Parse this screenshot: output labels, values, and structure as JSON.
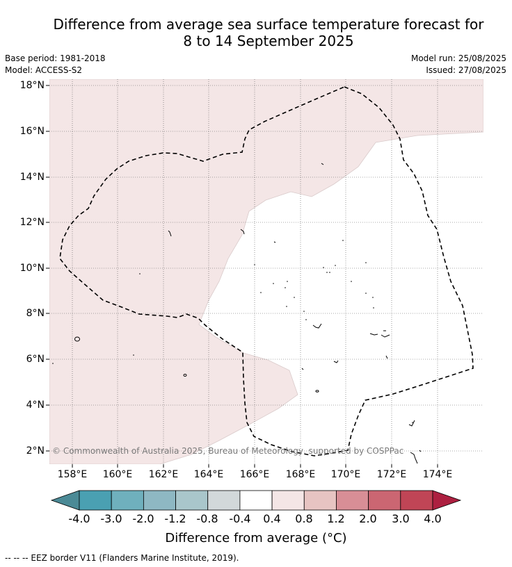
{
  "title": {
    "line1": "Difference from average sea surface temperature forecast for",
    "line2": "8 to 14 September 2025"
  },
  "meta": {
    "base_period": "Base period: 1981-2018",
    "model": "Model: ACCESS-S2",
    "model_run": "Model run: 25/08/2025",
    "issued": "Issued: 27/08/2025"
  },
  "map": {
    "lat_labels": [
      "18°N",
      "16°N",
      "14°N",
      "12°N",
      "10°N",
      "8°N",
      "6°N",
      "4°N",
      "2°N"
    ],
    "lon_labels": [
      "158°E",
      "160°E",
      "162°E",
      "164°E",
      "166°E",
      "168°E",
      "170°E",
      "172°E",
      "174°E"
    ],
    "copyright": "© Commonwealth of Australia 2025, Bureau of Meteorology, supported by COSPPac",
    "anomaly_fill_color": "#f4e6e6",
    "eez_line_color": "#000000",
    "grid_color": "#555555"
  },
  "colorbar": {
    "tick_labels": [
      "-4.0",
      "-3.0",
      "-2.0",
      "-1.2",
      "-0.8",
      "-0.4",
      "0.4",
      "0.8",
      "1.2",
      "2.0",
      "3.0",
      "4.0"
    ],
    "colors": [
      "#4b8a96",
      "#4aa0b2",
      "#6fb0bd",
      "#8eb8c3",
      "#a9c6cb",
      "#d2d8da",
      "#ffffff",
      "#f4e6e6",
      "#e7c4c2",
      "#d88e96",
      "#cb6672",
      "#c04556",
      "#ad2040"
    ],
    "title": "Difference from average (°C)"
  },
  "footnote": "--  --  -- EEZ border V11 (Flanders Marine Institute, 2019)."
}
